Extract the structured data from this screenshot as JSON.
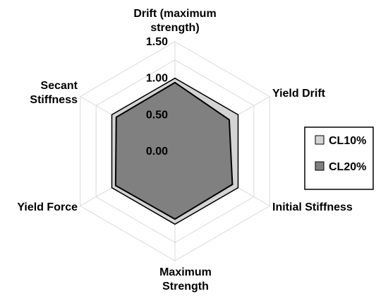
{
  "chart_data": {
    "type": "radar",
    "axes": [
      "Drift (maximum strength)",
      "Yield Drift",
      "Initial Stiffness",
      "Maximum Strength",
      "Yield Force",
      "Secant Stiffness"
    ],
    "axis_label_lines": [
      [
        "Drift (maximum",
        "strength)"
      ],
      [
        "Yield Drift"
      ],
      [
        "Initial Stiffness"
      ],
      [
        "Maximum",
        "Strength"
      ],
      [
        "Yield Force"
      ],
      [
        "Secant",
        "Stiffness"
      ]
    ],
    "ticks": [
      "0.00",
      "0.50",
      "1.00",
      "1.50"
    ],
    "rlim": [
      0,
      1.5
    ],
    "grid": true,
    "legend_position": "right",
    "series": [
      {
        "name": "CL10%",
        "values": [
          1.0,
          1.0,
          1.0,
          1.0,
          1.0,
          1.0
        ],
        "color": "#d4d4d4"
      },
      {
        "name": "CL20%",
        "values": [
          0.94,
          0.86,
          0.91,
          0.93,
          0.94,
          0.93
        ],
        "color": "#808080"
      }
    ]
  }
}
